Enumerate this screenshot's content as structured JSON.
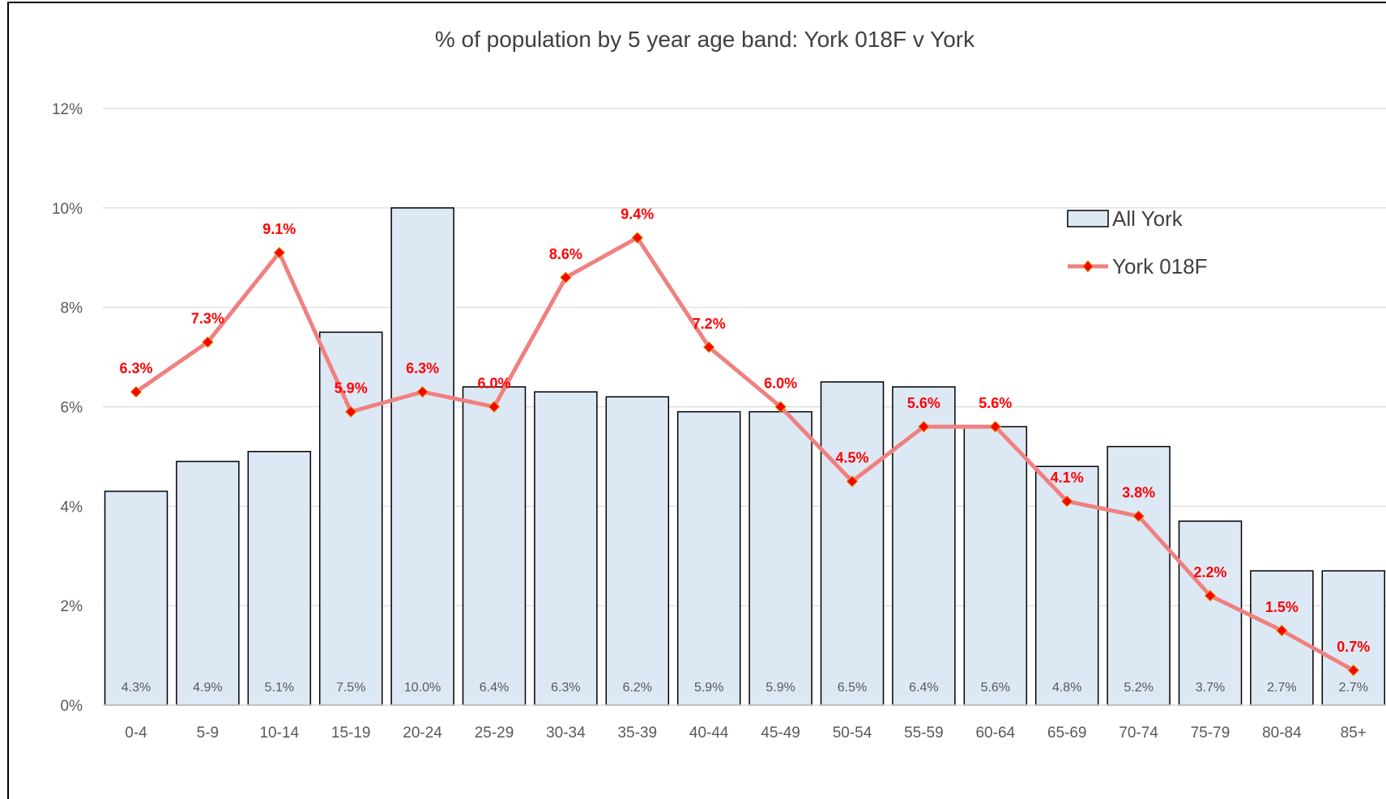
{
  "chart_data": {
    "type": "bar",
    "title": "% of population by 5 year age band: York 018F v York",
    "xlabel": "",
    "ylabel": "",
    "ylim": [
      0,
      12
    ],
    "yticks": [
      0,
      2,
      4,
      6,
      8,
      10,
      12
    ],
    "ytick_labels": [
      "0%",
      "2%",
      "4%",
      "6%",
      "8%",
      "10%",
      "12%"
    ],
    "grid": true,
    "legend_position": "top-right",
    "categories": [
      "0-4",
      "5-9",
      "10-14",
      "15-19",
      "20-24",
      "25-29",
      "30-34",
      "35-39",
      "40-44",
      "45-49",
      "50-54",
      "55-59",
      "60-64",
      "65-69",
      "70-74",
      "75-79",
      "80-84",
      "85+"
    ],
    "series": [
      {
        "name": "All York",
        "type": "bar",
        "color": "#dde8f5",
        "values": [
          4.3,
          4.9,
          5.1,
          7.5,
          10.0,
          6.4,
          6.3,
          6.2,
          5.9,
          5.9,
          6.5,
          6.4,
          5.6,
          4.8,
          5.2,
          3.7,
          2.7,
          2.7
        ],
        "labels": [
          "4.3%",
          "4.9%",
          "5.1%",
          "7.5%",
          "10.0%",
          "6.4%",
          "6.3%",
          "6.2%",
          "5.9%",
          "5.9%",
          "6.5%",
          "6.4%",
          "5.6%",
          "4.8%",
          "5.2%",
          "3.7%",
          "2.7%",
          "2.7%"
        ]
      },
      {
        "name": "York 018F",
        "type": "line",
        "color": "#f08080",
        "marker_color": "#ff0000",
        "values": [
          6.3,
          7.3,
          9.1,
          5.9,
          6.3,
          6.0,
          8.6,
          9.4,
          7.2,
          6.0,
          4.5,
          5.6,
          5.6,
          4.1,
          3.8,
          2.2,
          1.5,
          0.7
        ],
        "labels": [
          "6.3%",
          "7.3%",
          "9.1%",
          "5.9%",
          "6.3%",
          "6.0%",
          "8.6%",
          "9.4%",
          "7.2%",
          "6.0%",
          "4.5%",
          "5.6%",
          "5.6%",
          "4.1%",
          "3.8%",
          "2.2%",
          "1.5%",
          "0.7%"
        ]
      }
    ]
  }
}
